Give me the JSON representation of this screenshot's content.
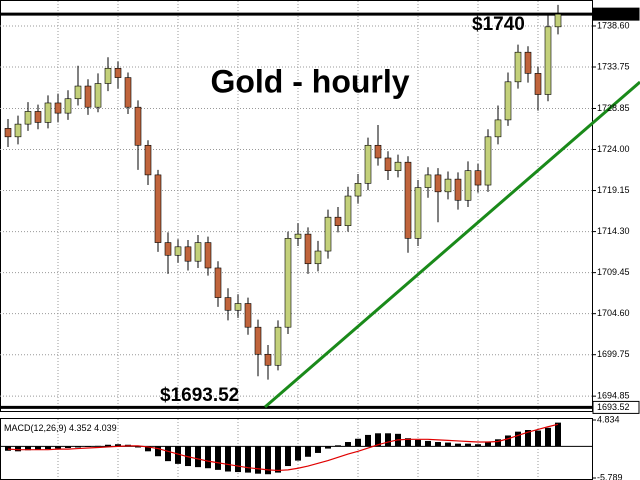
{
  "chart_data": {
    "type": "candlestick",
    "title": "Gold - hourly",
    "annotations": [
      "$1740",
      "$1693.52"
    ],
    "up_color": "#c3d07a",
    "down_color": "#c0643c",
    "trend_color": "#1a8a1a",
    "grid": true,
    "open": [
      1726.5,
      1725.5,
      1727,
      1728.5,
      1727.2,
      1729.5,
      1728.3,
      1730,
      1731.5,
      1729,
      1731.8,
      1733.6,
      1732.5,
      1729,
      1724.5,
      1721,
      1713,
      1711.5,
      1712.5,
      1710.8,
      1713,
      1710,
      1706.5,
      1705,
      1705.8,
      1703,
      1699.8,
      1698.5,
      1703,
      1713.5,
      1714,
      1710.5,
      1712,
      1716,
      1715,
      1718.5,
      1720,
      1724.5,
      1723,
      1721.5,
      1722.5,
      1713.5,
      1719.5,
      1721,
      1719,
      1720.5,
      1718,
      1721.5,
      1719.8,
      1725.5,
      1727.5,
      1732,
      1735.5,
      1733,
      1730.5,
      1738.5
    ],
    "high": [
      1727.6,
      1728,
      1729.6,
      1729.3,
      1730.4,
      1730.6,
      1731,
      1733.9,
      1732.3,
      1733,
      1734.9,
      1734.4,
      1733.1,
      1729.8,
      1725.1,
      1721.6,
      1714.2,
      1713.4,
      1713.3,
      1713.9,
      1713.7,
      1710.8,
      1707.6,
      1706.9,
      1706.5,
      1703.9,
      1700.9,
      1703.8,
      1714.3,
      1715.3,
      1714.8,
      1713.2,
      1716.9,
      1717.2,
      1719.6,
      1721.1,
      1725.4,
      1726.9,
      1723.8,
      1723.4,
      1723.2,
      1720.4,
      1721.9,
      1721.8,
      1721.4,
      1721.3,
      1722.6,
      1722.3,
      1726.4,
      1729.2,
      1733.1,
      1736.4,
      1736.2,
      1733.8,
      1739.9,
      1741.1
    ],
    "low": [
      1724.3,
      1724.6,
      1726.2,
      1726.4,
      1726.5,
      1727.2,
      1727.5,
      1729.2,
      1728.1,
      1728.4,
      1730.9,
      1731.2,
      1728.2,
      1721.6,
      1719.8,
      1711.9,
      1709.3,
      1710.6,
      1709.7,
      1710,
      1709.1,
      1705.4,
      1703.8,
      1704.1,
      1702.1,
      1697.2,
      1696.8,
      1697.9,
      1702.2,
      1712.6,
      1709.3,
      1709.6,
      1711.1,
      1714.2,
      1714.3,
      1717.6,
      1719.2,
      1722.1,
      1720.4,
      1720.7,
      1711.8,
      1712.6,
      1718.3,
      1715.4,
      1718.1,
      1716.9,
      1717.2,
      1718.9,
      1719,
      1724.6,
      1726.8,
      1731.2,
      1731.9,
      1728.6,
      1729.7,
      1737.6
    ],
    "close": [
      1725.5,
      1727,
      1728.5,
      1727.2,
      1729.5,
      1728.3,
      1730,
      1731.5,
      1729,
      1731.8,
      1733.6,
      1732.5,
      1729,
      1724.5,
      1721,
      1713,
      1711.5,
      1712.5,
      1710.8,
      1713,
      1710,
      1706.5,
      1705,
      1705.8,
      1703,
      1699.8,
      1698.5,
      1703,
      1713.5,
      1714,
      1710.5,
      1712,
      1716,
      1715,
      1718.5,
      1720,
      1724.5,
      1723,
      1721.5,
      1722.5,
      1713.5,
      1719.5,
      1721,
      1719,
      1720.5,
      1718,
      1721.5,
      1719.8,
      1725.5,
      1727.5,
      1732,
      1735.5,
      1733,
      1730.5,
      1738.5,
      1740
    ],
    "ylim": [
      1693.45,
      1741.67
    ],
    "yticks": [
      {
        "value": 1738.6,
        "label": "1738.60"
      },
      1733.75,
      1728.85,
      {
        "value": 1724,
        "label": "1724.00"
      },
      1719.15,
      {
        "value": 1714.3,
        "label": "1714.30"
      },
      1709.45,
      {
        "value": 1704.6,
        "label": "1704.60"
      },
      1699.75,
      1694.85
    ],
    "price_tags": [
      {
        "value": 1740,
        "label": "1740.00"
      },
      1693.52
    ],
    "macd": {
      "name": "MACD(12,26,9)",
      "color": "#000000",
      "signal_color": "#e00000",
      "values": [
        -0.8,
        -0.9,
        -0.7,
        -0.6,
        -0.5,
        -0.4,
        -0.3,
        -0.2,
        -0.1,
        0.1,
        0.3,
        0.4,
        0.3,
        -0.2,
        -0.9,
        -1.8,
        -2.7,
        -3.2,
        -3.6,
        -3.8,
        -4.0,
        -4.3,
        -4.6,
        -4.7,
        -4.8,
        -5.0,
        -5.1,
        -4.8,
        -3.6,
        -2.6,
        -1.9,
        -1.2,
        -0.4,
        0.2,
        0.8,
        1.4,
        2.1,
        2.4,
        2.4,
        2.3,
        1.5,
        1.2,
        1.0,
        0.8,
        0.7,
        0.5,
        0.5,
        0.4,
        0.8,
        1.3,
        2.0,
        2.7,
        3.0,
        2.9,
        3.4,
        4.352
      ],
      "signal": [
        -0.5,
        -0.6,
        -0.6,
        -0.6,
        -0.6,
        -0.5,
        -0.5,
        -0.4,
        -0.3,
        -0.2,
        -0.1,
        0.0,
        0.1,
        0.1,
        -0.1,
        -0.4,
        -0.9,
        -1.4,
        -1.9,
        -2.3,
        -2.7,
        -3.0,
        -3.3,
        -3.6,
        -3.9,
        -4.1,
        -4.3,
        -4.4,
        -4.3,
        -4.0,
        -3.6,
        -3.1,
        -2.6,
        -2.0,
        -1.4,
        -0.9,
        -0.3,
        0.3,
        0.8,
        1.2,
        1.3,
        1.3,
        1.3,
        1.2,
        1.1,
        1.0,
        0.9,
        0.8,
        0.8,
        0.9,
        1.4,
        2.0,
        2.6,
        3.1,
        3.6,
        4.039
      ],
      "ylim": [
        -5.789,
        4.834
      ],
      "yticks": [
        4.834,
        -5.789
      ]
    }
  }
}
